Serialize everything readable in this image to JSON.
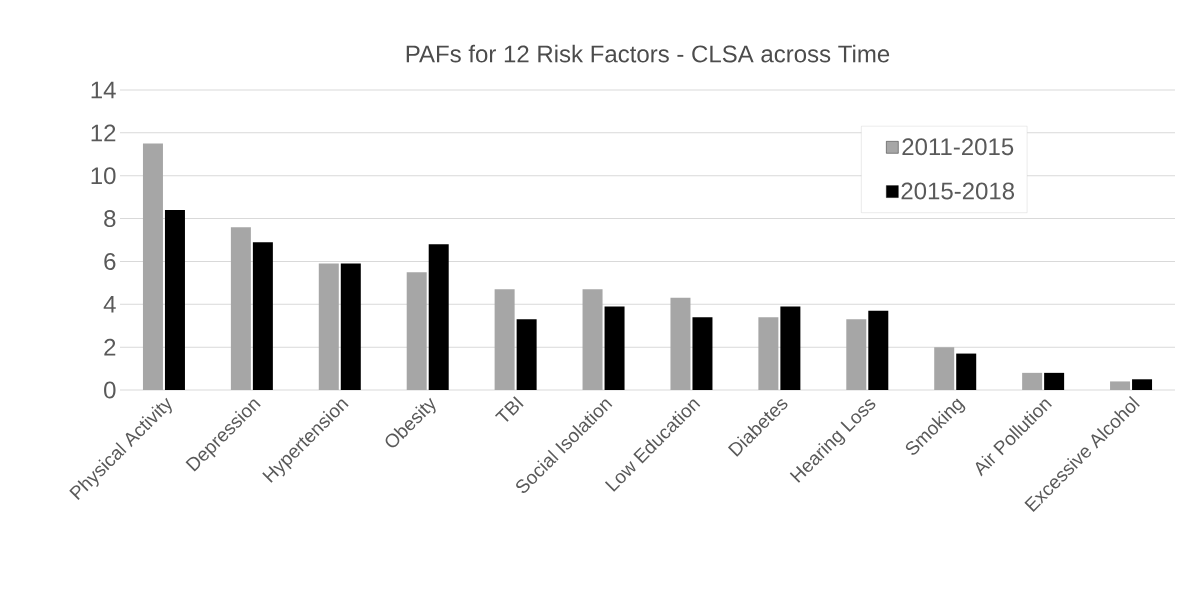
{
  "chart_data": {
    "type": "bar",
    "title": "PAFs for 12 Risk Factors - CLSA across Time",
    "categories": [
      "Physical Activity",
      "Depression",
      "Hypertension",
      "Obesity",
      "TBI",
      "Social Isolation",
      "Low Education",
      "Diabetes",
      "Hearing Loss",
      "Smoking",
      "Air Pollution",
      "Excessive Alcohol"
    ],
    "series": [
      {
        "name": "2011-2015",
        "color": "#a6a6a6",
        "values": [
          11.5,
          7.6,
          5.9,
          5.5,
          4.7,
          4.7,
          4.3,
          3.4,
          3.3,
          2.0,
          0.8,
          0.4
        ]
      },
      {
        "name": "2015-2018",
        "color": "#000000",
        "values": [
          8.4,
          6.9,
          5.9,
          6.8,
          3.3,
          3.9,
          3.4,
          3.9,
          3.7,
          1.7,
          0.8,
          0.5
        ]
      }
    ],
    "ylim": [
      0,
      14
    ],
    "yticks": [
      0,
      2,
      4,
      6,
      8,
      10,
      12,
      14
    ],
    "grid": "y",
    "legend": "top right"
  }
}
